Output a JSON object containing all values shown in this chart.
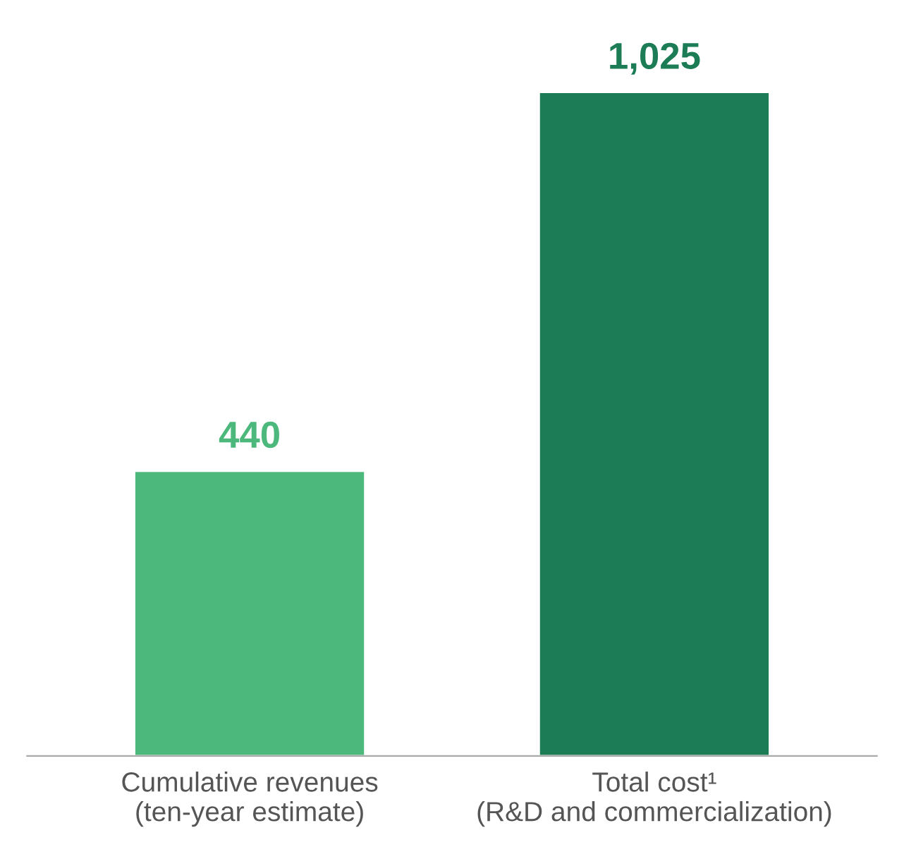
{
  "chart_data": {
    "type": "bar",
    "categories": [
      "Cumulative revenues\n(ten-year estimate)",
      "Total cost¹\n(R&D and commercialization)"
    ],
    "values": [
      440,
      1025
    ],
    "colors": [
      "#4cb87b",
      "#1c7c55"
    ],
    "value_labels": [
      "440",
      "1,025"
    ]
  }
}
